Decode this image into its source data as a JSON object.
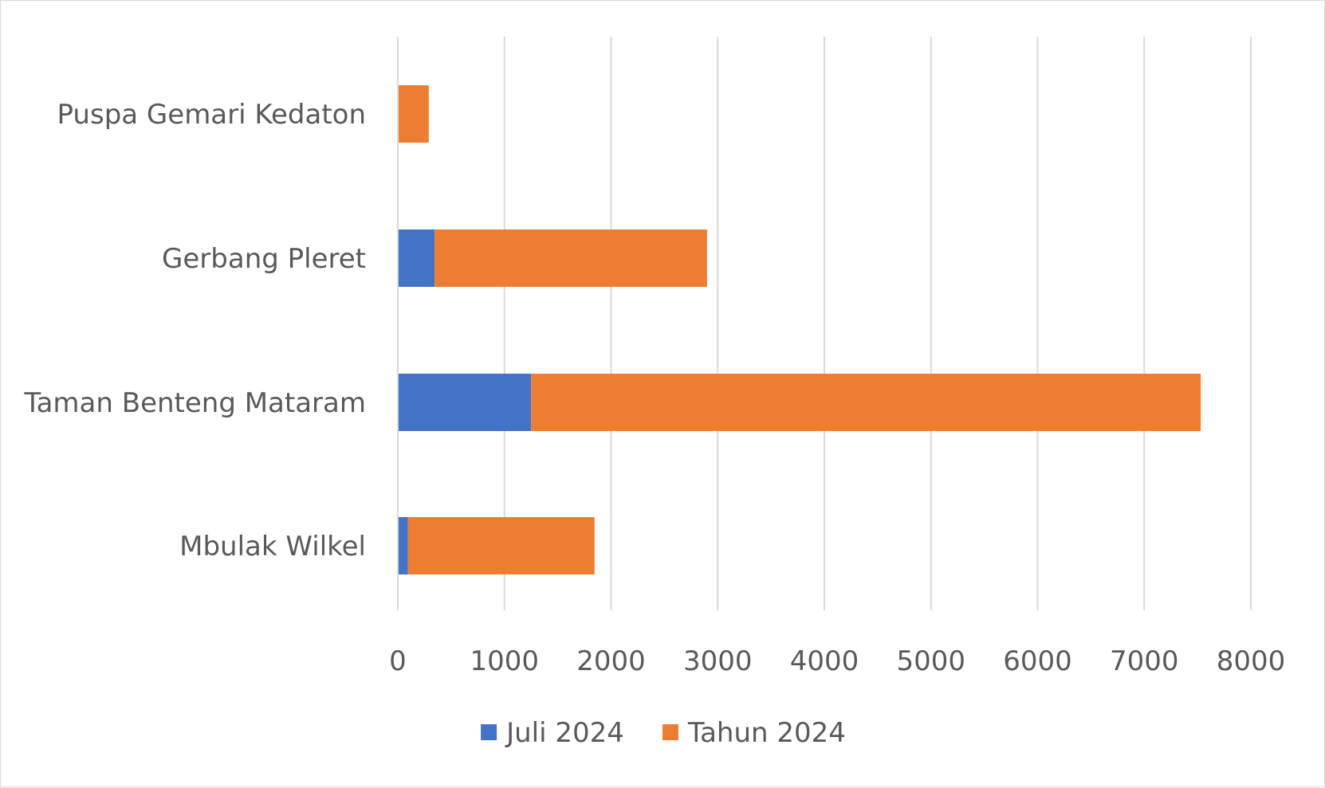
{
  "chart_data": {
    "type": "bar",
    "orientation": "horizontal",
    "stacked": true,
    "title": "",
    "xlabel": "",
    "ylabel": "",
    "categories": [
      "Mbulak Wilkel",
      "Taman Benteng Mataram",
      "Gerbang Pleret",
      "Puspa Gemari Kedaton"
    ],
    "series": [
      {
        "name": "Juli 2024",
        "color": "#4472C4",
        "values": [
          95,
          1250,
          345,
          8
        ]
      },
      {
        "name": "Tahun 2024",
        "color": "#ED7D31",
        "values": [
          1750,
          6280,
          2555,
          282
        ]
      }
    ],
    "xlim": [
      0,
      8000
    ],
    "xticks": [
      0,
      1000,
      2000,
      3000,
      4000,
      5000,
      6000,
      7000,
      8000
    ],
    "grid": true,
    "legend_position": "bottom"
  }
}
